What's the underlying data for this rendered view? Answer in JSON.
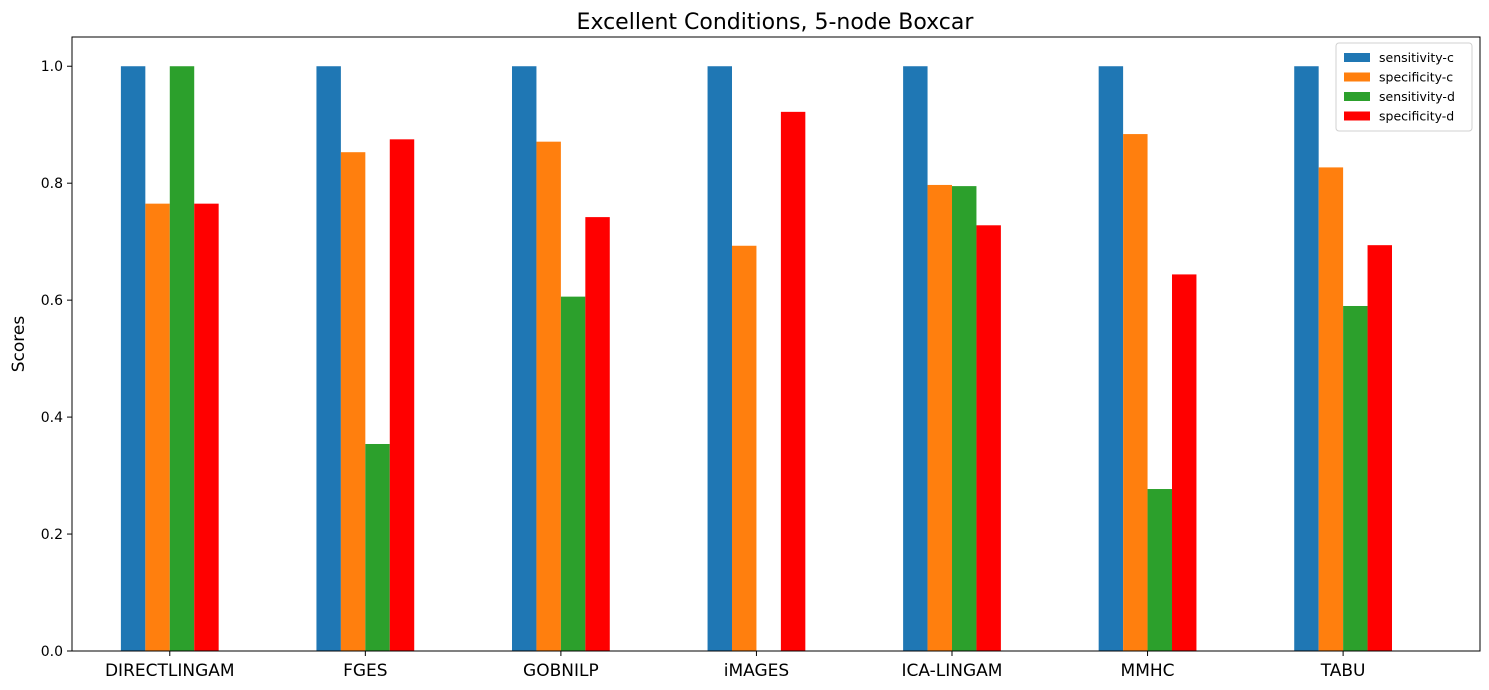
{
  "chart_data": {
    "type": "bar",
    "title": "Excellent Conditions, 5-node Boxcar",
    "xlabel": "",
    "ylabel": "Scores",
    "categories": [
      "DIRECTLINGAM",
      "FGES",
      "GOBNILP",
      "iMAGES",
      "ICA-LINGAM",
      "MMHC",
      "TABU"
    ],
    "ylim": [
      0,
      1.05
    ],
    "yticks": [
      0.0,
      0.2,
      0.4,
      0.6,
      0.8,
      1.0
    ],
    "ytick_labels": [
      "0.0",
      "0.2",
      "0.4",
      "0.6",
      "0.8",
      "1.0"
    ],
    "grid": false,
    "legend_position": "top-right",
    "series": [
      {
        "name": "sensitivity-c",
        "color": "#1f77b4",
        "values": [
          1.0,
          1.0,
          1.0,
          1.0,
          1.0,
          1.0,
          1.0
        ]
      },
      {
        "name": "specificity-c",
        "color": "#ff7f0e",
        "values": [
          0.765,
          0.853,
          0.871,
          0.693,
          0.797,
          0.884,
          0.827
        ]
      },
      {
        "name": "sensitivity-d",
        "color": "#2ca02c",
        "values": [
          1.0,
          0.354,
          0.606,
          0.0,
          0.795,
          0.277,
          0.59
        ]
      },
      {
        "name": "specificity-d",
        "color": "#ff0000",
        "values": [
          0.765,
          0.875,
          0.742,
          0.922,
          0.728,
          0.644,
          0.694
        ]
      }
    ]
  }
}
